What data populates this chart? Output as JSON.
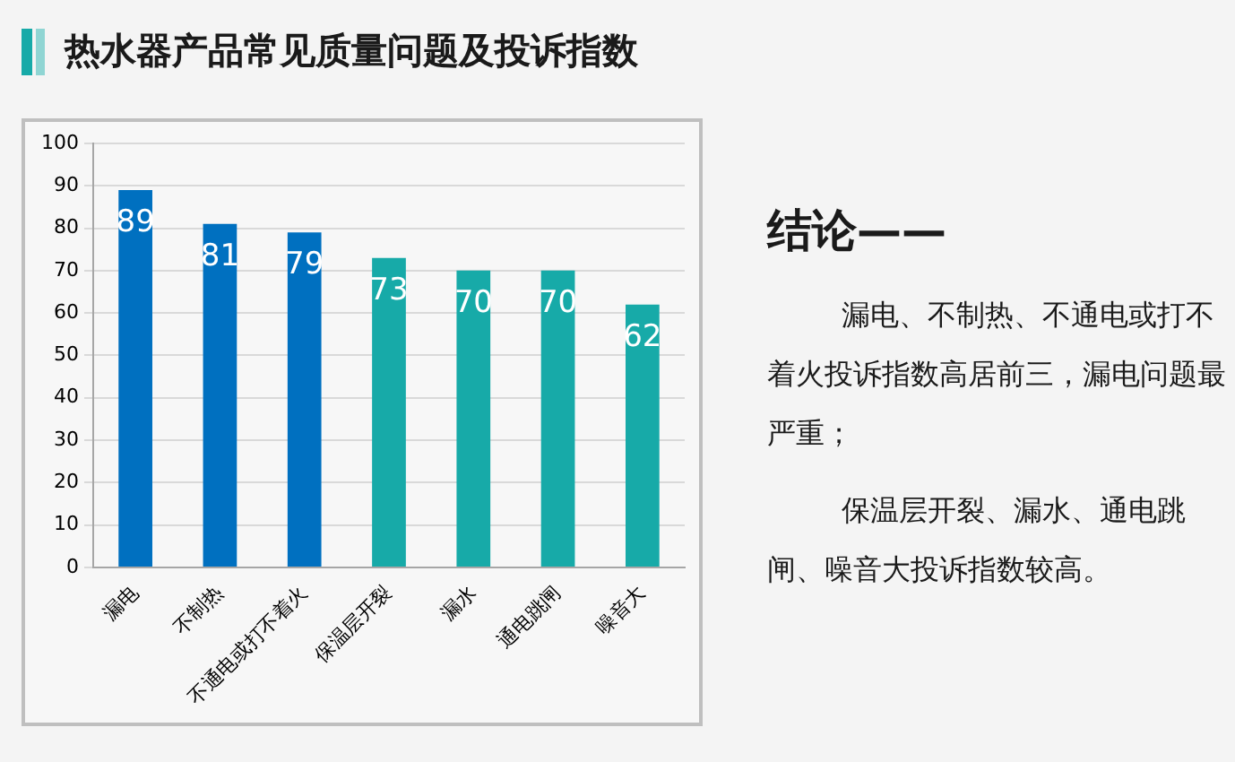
{
  "chart_data": {
    "type": "bar",
    "title": "热水器产品常见质量问题及投诉指数",
    "categories": [
      "漏电",
      "不制热",
      "不通电或打不着火",
      "保温层开裂",
      "漏水",
      "通电跳闸",
      "噪音大"
    ],
    "values": [
      89,
      81,
      79,
      73,
      70,
      70,
      62
    ],
    "colors": [
      "#0070c0",
      "#0070c0",
      "#0070c0",
      "#17aaa8",
      "#17aaa8",
      "#17aaa8",
      "#17aaa8"
    ],
    "ylim": [
      0,
      100
    ],
    "yticks": [
      0,
      10,
      20,
      30,
      40,
      50,
      60,
      70,
      80,
      90,
      100
    ],
    "grid": "y",
    "data_labels": true,
    "annotations": [
      "结论——",
      "漏电、不制热、不通电或打不着火投诉指数高居前三，漏电问题最严重；",
      "保温层开裂、漏水、通电跳闸、噪音大投诉指数较高。"
    ]
  }
}
